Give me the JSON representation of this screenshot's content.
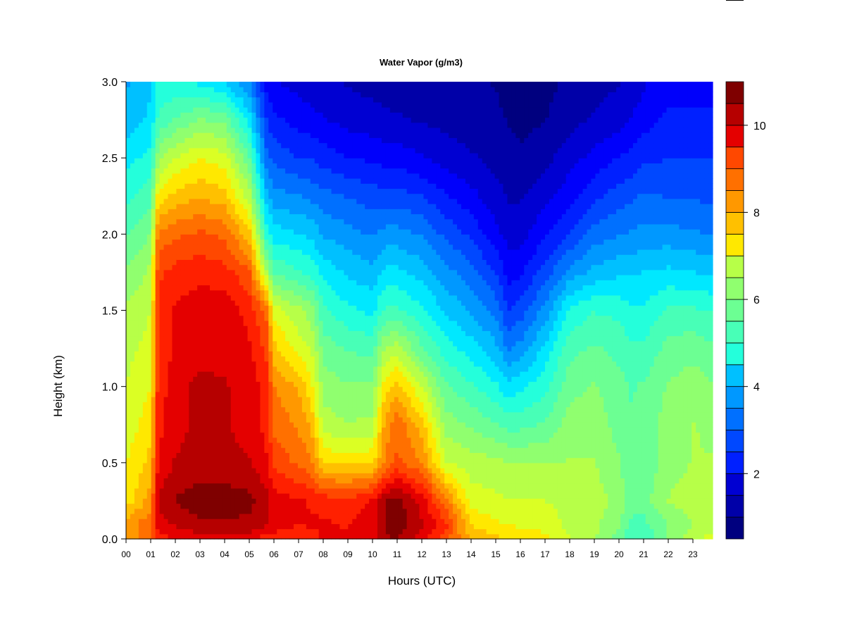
{
  "chart_data": {
    "type": "heatmap",
    "title": "Water Vapor (g/m3)",
    "xlabel": "Hours (UTC)",
    "ylabel": "Height (km)",
    "x_tick_labels": [
      "00",
      "01",
      "02",
      "03",
      "04",
      "05",
      "06",
      "07",
      "08",
      "09",
      "10",
      "11",
      "12",
      "13",
      "14",
      "15",
      "16",
      "17",
      "18",
      "19",
      "20",
      "21",
      "22",
      "23"
    ],
    "y_tick_labels": [
      "0.0",
      "0.5",
      "1.0",
      "1.5",
      "2.0",
      "2.5",
      "3.0"
    ],
    "xlim": [
      0,
      24
    ],
    "ylim": [
      0.0,
      3.0
    ],
    "colorbar": {
      "min": 0.5,
      "max": 11,
      "levels": 21,
      "tick_labels": [
        "2",
        "4",
        "6",
        "8",
        "10"
      ],
      "palette": [
        "#00007f",
        "#0000a8",
        "#0000d2",
        "#0000fb",
        "#0020ff",
        "#0048ff",
        "#0070ff",
        "#0098ff",
        "#00c0ff",
        "#00e8ff",
        "#24ffdb",
        "#48ffb7",
        "#6cff93",
        "#90ff6f",
        "#b7ff48",
        "#dbff24",
        "#ffe800",
        "#ffc000",
        "#ff9800",
        "#ff7000",
        "#ff4800",
        "#ff2000",
        "#e40000",
        "#b60000",
        "#7f0000"
      ]
    },
    "hours": [
      0,
      0.5,
      1,
      1.3,
      2,
      3,
      4,
      5,
      5.7,
      6,
      7,
      7.5,
      8,
      9,
      10,
      10.5,
      11,
      12,
      13,
      14,
      15,
      15.5,
      16,
      17,
      18,
      19,
      20,
      20.5,
      21,
      22,
      23,
      23.8
    ],
    "heights_km": [
      0.0,
      0.1,
      0.25,
      0.5,
      0.75,
      1.0,
      1.25,
      1.5,
      1.75,
      2.0,
      2.25,
      2.5,
      2.75,
      3.0
    ],
    "values_g_m3": [
      [
        8.0,
        8.3,
        7.4,
        7.2,
        7.0,
        6.8,
        6.7,
        6.5,
        6.0,
        5.5,
        5.0,
        4.5,
        4.0,
        3.8
      ],
      [
        8.4,
        8.5,
        7.8,
        7.5,
        7.2,
        7.0,
        6.8,
        6.6,
        6.2,
        5.7,
        5.2,
        4.7,
        4.2,
        4.0
      ],
      [
        9.0,
        8.8,
        8.3,
        7.8,
        7.5,
        7.2,
        7.0,
        6.8,
        6.5,
        6.0,
        5.4,
        4.8,
        4.4,
        4.2
      ],
      [
        9.5,
        10.0,
        10.2,
        9.8,
        9.6,
        9.5,
        9.4,
        9.4,
        9.2,
        8.6,
        7.4,
        6.2,
        5.2,
        4.8
      ],
      [
        9.8,
        10.2,
        10.6,
        10.2,
        10.0,
        10.0,
        9.8,
        9.8,
        9.5,
        8.8,
        7.8,
        6.8,
        5.6,
        4.8
      ],
      [
        10.0,
        10.5,
        10.9,
        10.3,
        10.3,
        10.3,
        10.0,
        10.0,
        9.6,
        9.0,
        8.0,
        7.2,
        6.0,
        4.6
      ],
      [
        10.0,
        10.5,
        10.8,
        10.3,
        10.2,
        10.2,
        10.0,
        10.0,
        9.5,
        8.8,
        7.8,
        7.0,
        5.8,
        4.2
      ],
      [
        10.0,
        10.5,
        10.7,
        10.2,
        10.0,
        10.0,
        9.8,
        9.6,
        9.0,
        7.8,
        6.6,
        5.6,
        4.5,
        3.5
      ],
      [
        9.5,
        10.2,
        10.3,
        9.8,
        9.6,
        9.6,
        9.2,
        8.8,
        6.5,
        5.0,
        4.0,
        3.2,
        2.6,
        2.0
      ],
      [
        9.5,
        10.0,
        10.0,
        9.2,
        8.8,
        8.5,
        7.8,
        7.0,
        5.5,
        4.5,
        3.6,
        2.9,
        2.3,
        1.8
      ],
      [
        9.3,
        9.8,
        9.8,
        8.8,
        8.4,
        8.0,
        7.0,
        6.5,
        5.2,
        4.3,
        3.5,
        2.6,
        2.0,
        1.6
      ],
      [
        9.5,
        9.8,
        9.7,
        8.6,
        8.0,
        7.4,
        6.8,
        6.2,
        5.0,
        4.2,
        3.3,
        2.6,
        1.9,
        1.5
      ],
      [
        9.8,
        9.8,
        9.6,
        7.6,
        6.6,
        6.2,
        5.8,
        5.2,
        4.6,
        3.8,
        3.2,
        2.4,
        1.8,
        1.4
      ],
      [
        9.8,
        9.7,
        9.5,
        7.5,
        6.4,
        6.0,
        5.5,
        4.8,
        4.2,
        3.6,
        3.0,
        2.2,
        1.6,
        1.3
      ],
      [
        10.0,
        10.0,
        9.8,
        7.6,
        6.5,
        6.0,
        5.4,
        4.6,
        4.0,
        3.4,
        2.8,
        2.1,
        1.5,
        1.2
      ],
      [
        10.5,
        10.6,
        10.6,
        8.5,
        8.2,
        7.5,
        6.4,
        5.2,
        4.4,
        3.6,
        2.8,
        2.0,
        1.4,
        1.2
      ],
      [
        10.6,
        10.8,
        10.8,
        9.0,
        8.8,
        7.8,
        6.6,
        5.2,
        4.4,
        3.6,
        2.8,
        2.0,
        1.4,
        1.1
      ],
      [
        10.0,
        10.2,
        10.0,
        8.5,
        7.8,
        6.8,
        5.6,
        4.8,
        4.1,
        3.4,
        2.6,
        1.8,
        1.3,
        1.1
      ],
      [
        9.0,
        9.4,
        8.6,
        6.8,
        6.2,
        5.6,
        4.9,
        4.2,
        3.6,
        2.9,
        2.2,
        1.6,
        1.2,
        1.1
      ],
      [
        8.0,
        7.6,
        7.0,
        6.6,
        5.9,
        5.2,
        4.5,
        3.8,
        3.2,
        2.5,
        1.9,
        1.4,
        1.1,
        1.0
      ],
      [
        7.8,
        7.3,
        6.9,
        6.5,
        5.6,
        4.8,
        4.0,
        3.3,
        2.6,
        1.9,
        1.5,
        1.2,
        1.0,
        0.9
      ],
      [
        7.6,
        7.2,
        6.8,
        6.4,
        5.4,
        4.4,
        3.4,
        2.6,
        2.0,
        1.6,
        1.3,
        1.1,
        0.9,
        0.8
      ],
      [
        7.5,
        7.1,
        6.8,
        6.4,
        5.4,
        4.6,
        3.6,
        2.8,
        2.1,
        1.6,
        1.3,
        1.0,
        0.8,
        0.7
      ],
      [
        7.4,
        7.0,
        6.8,
        6.4,
        5.6,
        5.0,
        4.4,
        3.6,
        2.8,
        2.1,
        1.6,
        1.2,
        0.9,
        0.8
      ],
      [
        6.8,
        6.7,
        6.7,
        6.4,
        6.2,
        5.8,
        5.4,
        4.8,
        3.6,
        2.6,
        2.0,
        1.6,
        1.2,
        1.0
      ],
      [
        6.4,
        6.5,
        6.6,
        6.4,
        6.2,
        6.0,
        5.6,
        5.1,
        4.0,
        3.2,
        2.5,
        1.9,
        1.4,
        1.2
      ],
      [
        5.8,
        6.0,
        6.2,
        6.0,
        5.8,
        5.7,
        5.4,
        5.0,
        4.2,
        3.4,
        2.8,
        2.2,
        1.6,
        1.3
      ],
      [
        5.2,
        5.4,
        5.8,
        5.6,
        5.6,
        5.5,
        5.2,
        4.8,
        4.2,
        3.5,
        2.9,
        2.3,
        1.8,
        1.4
      ],
      [
        5.2,
        5.4,
        5.8,
        5.6,
        5.6,
        5.6,
        5.2,
        4.8,
        4.3,
        3.6,
        3.1,
        2.5,
        2.0,
        1.7
      ],
      [
        6.0,
        6.0,
        6.4,
        6.2,
        6.2,
        6.0,
        5.7,
        5.2,
        4.4,
        3.6,
        3.0,
        2.6,
        2.3,
        2.0
      ],
      [
        6.6,
        6.4,
        6.6,
        6.4,
        6.4,
        6.2,
        5.8,
        5.2,
        4.3,
        3.5,
        3.0,
        2.6,
        2.3,
        2.0
      ],
      [
        7.0,
        6.6,
        6.6,
        6.4,
        6.3,
        6.0,
        5.6,
        5.1,
        4.2,
        3.4,
        2.9,
        2.6,
        2.3,
        2.0
      ]
    ]
  }
}
